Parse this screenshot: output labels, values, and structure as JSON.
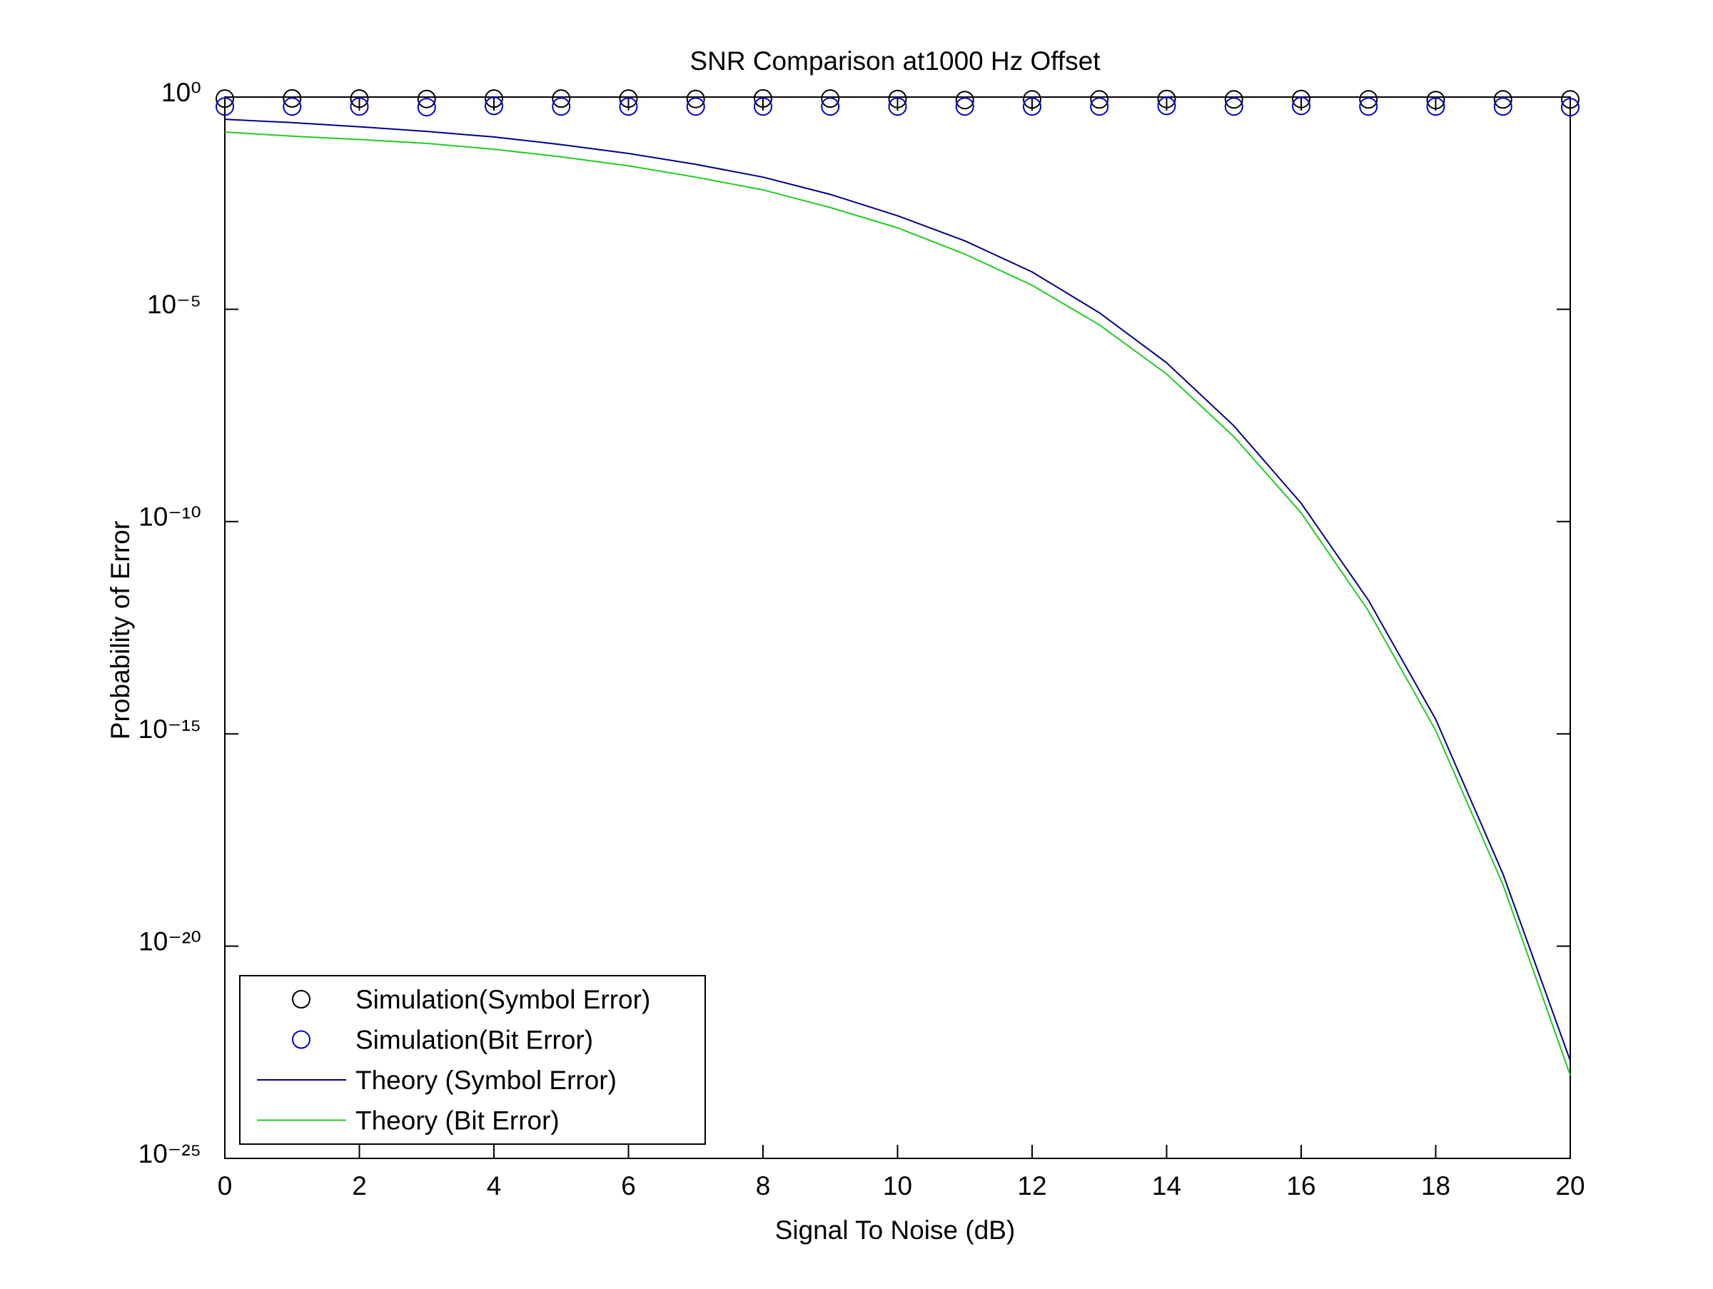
{
  "chart_data": {
    "type": "line",
    "title": "SNR Comparison at1000 Hz Offset",
    "x_label": "Signal To Noise (dB)",
    "y_label": "Probability of Error",
    "y_scale": "log",
    "grid": false,
    "legend_position": "lower left",
    "x": [
      0,
      1,
      2,
      3,
      4,
      5,
      6,
      7,
      8,
      9,
      10,
      11,
      12,
      13,
      14,
      15,
      16,
      17,
      18,
      19,
      20
    ],
    "xlim": [
      0,
      20
    ],
    "xticks": [
      0,
      2,
      4,
      6,
      8,
      10,
      12,
      14,
      16,
      18,
      20
    ],
    "ylim": [
      1e-25,
      1
    ],
    "yticks": [
      {
        "value": 1e-25,
        "label": "10⁻²⁵"
      },
      {
        "value": 1e-20,
        "label": "10⁻²⁰"
      },
      {
        "value": 1e-15,
        "label": "10⁻¹⁵"
      },
      {
        "value": 1e-10,
        "label": "10⁻¹⁰"
      },
      {
        "value": 1e-05,
        "label": "10⁻⁵"
      },
      {
        "value": 1,
        "label": "10⁰"
      }
    ],
    "series": [
      {
        "name": "Simulation(Symbol Error)",
        "color": "#000000",
        "style": "marker",
        "values": [
          0.92,
          0.93,
          0.92,
          0.9,
          0.92,
          0.92,
          0.92,
          0.9,
          0.93,
          0.92,
          0.9,
          0.85,
          0.88,
          0.88,
          0.9,
          0.88,
          0.9,
          0.88,
          0.85,
          0.88,
          0.88
        ]
      },
      {
        "name": "Simulation(Bit Error)",
        "color": "#0000cc",
        "style": "marker",
        "values": [
          0.6,
          0.6,
          0.6,
          0.58,
          0.62,
          0.6,
          0.6,
          0.6,
          0.6,
          0.6,
          0.6,
          0.6,
          0.6,
          0.6,
          0.62,
          0.6,
          0.62,
          0.6,
          0.6,
          0.6,
          0.58
        ]
      },
      {
        "name": "Theory (Symbol Error)",
        "color": "#00008b",
        "style": "line",
        "values": [
          0.3,
          0.25,
          0.2,
          0.155,
          0.115,
          0.076,
          0.047,
          0.026,
          0.013,
          0.0051,
          0.0016,
          0.00041,
          7.6e-05,
          8.3e-06,
          5.5e-07,
          1.8e-08,
          2.7e-10,
          1.4e-12,
          2.2e-15,
          5e-19,
          2e-23
        ]
      },
      {
        "name": "Theory (Bit Error)",
        "color": "#22cc22",
        "style": "line",
        "values": [
          0.15,
          0.12,
          0.1,
          0.081,
          0.059,
          0.039,
          0.024,
          0.013,
          0.0065,
          0.0025,
          0.00083,
          0.0002,
          3.7e-05,
          4.3e-06,
          3e-07,
          1e-08,
          1.6e-10,
          7.9e-13,
          1.2e-15,
          2.8e-19,
          9.1e-24
        ]
      }
    ]
  }
}
